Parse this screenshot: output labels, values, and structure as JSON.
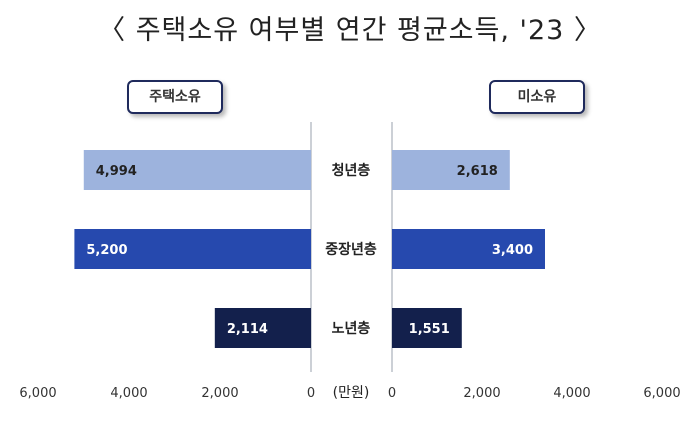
{
  "title": "〈 주택소유 여부별 연간 평균소득, '23 〉",
  "panels": {
    "left_label": "주택소유",
    "right_label": "미소유"
  },
  "unit_label": "(만원)",
  "colors": {
    "youth": "#9db3dd",
    "middle": "#2649ae",
    "senior": "#13204c",
    "axis": "#9aa0ae",
    "pill_border": "#1f2a5c"
  },
  "chart_data": {
    "type": "bar",
    "orientation": "horizontal-diverging",
    "title": "〈 주택소유 여부별 연간 평균소득, '23 〉",
    "categories": [
      "청년층",
      "중장년층",
      "노년층"
    ],
    "series": [
      {
        "name": "주택소유",
        "values": [
          4994,
          5200,
          2114
        ]
      },
      {
        "name": "미소유",
        "values": [
          2618,
          3400,
          1551
        ]
      }
    ],
    "value_labels": {
      "주택소유": [
        "4,994",
        "5,200",
        "2,114"
      ],
      "미소유": [
        "2,618",
        "3,400",
        "1,551"
      ]
    },
    "xlim": [
      0,
      6000
    ],
    "ticks": [
      0,
      2000,
      4000,
      6000
    ],
    "tick_labels": [
      "0",
      "2,000",
      "4,000",
      "6,000"
    ],
    "xlabel": "(만원)",
    "grid": false
  }
}
